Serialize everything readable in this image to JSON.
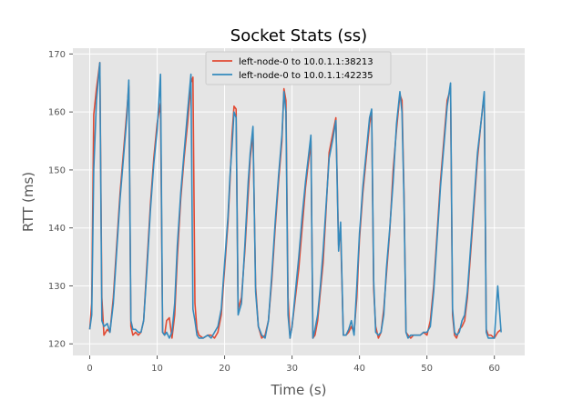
{
  "chart_data": {
    "type": "line",
    "title": "Socket Stats (ss)",
    "xlabel": "Time (s)",
    "ylabel": "RTT (ms)",
    "xlim": [
      -2.5,
      64.5
    ],
    "ylim": [
      118,
      171
    ],
    "xticks": [
      0,
      10,
      20,
      30,
      40,
      50,
      60
    ],
    "yticks": [
      120,
      130,
      140,
      150,
      160,
      170
    ],
    "grid": true,
    "legend_position": "top-center",
    "background_color": "#e5e5e5",
    "series": [
      {
        "name": "left-node-0 to 10.0.1.1:38213",
        "color": "#e24a33",
        "x": [
          0,
          0.3,
          0.6,
          1.0,
          1.5,
          1.8,
          2.1,
          2.6,
          3.0,
          3.5,
          4.0,
          4.5,
          5.0,
          5.5,
          5.8,
          6.1,
          6.4,
          6.8,
          7.2,
          7.6,
          8.0,
          8.5,
          9.0,
          9.5,
          10.0,
          10.5,
          10.8,
          11.1,
          11.4,
          11.8,
          12.2,
          12.6,
          13.0,
          13.5,
          14.0,
          14.5,
          15.0,
          15.3,
          15.6,
          15.9,
          16.2,
          16.8,
          17.5,
          18.0,
          18.5,
          19.0,
          19.5,
          20.0,
          20.5,
          20.8,
          21.1,
          21.4,
          21.7,
          22.0,
          22.5,
          23.0,
          23.5,
          23.8,
          24.2,
          24.6,
          25.0,
          25.5,
          26.0,
          26.5,
          27.0,
          27.5,
          28.0,
          28.5,
          28.8,
          29.1,
          29.4,
          29.7,
          30.0,
          30.5,
          31.0,
          31.5,
          32.0,
          32.5,
          32.8,
          33.1,
          33.4,
          33.8,
          34.2,
          34.6,
          35.0,
          35.5,
          36.0,
          36.5,
          36.9,
          37.2,
          37.6,
          38.0,
          38.4,
          38.8,
          39.2,
          39.6,
          40.0,
          40.5,
          41.0,
          41.5,
          41.8,
          42.1,
          42.4,
          42.8,
          43.2,
          43.6,
          44.0,
          44.5,
          45.0,
          45.5,
          46.0,
          46.3,
          46.6,
          46.9,
          47.2,
          47.6,
          48.0,
          48.5,
          49.0,
          49.5,
          50.0,
          50.5,
          51.0,
          51.5,
          52.0,
          52.5,
          53.0,
          53.5,
          53.8,
          54.1,
          54.4,
          54.8,
          55.2,
          55.6,
          56.0,
          56.5,
          57.0,
          57.5,
          58.0,
          58.5,
          58.8,
          59.1,
          59.5,
          60.0,
          60.5,
          61.0
        ],
        "y": [
          122.5,
          127,
          159.5,
          164,
          168.5,
          128,
          121.5,
          122.5,
          122,
          128,
          137,
          146,
          153,
          160,
          164.5,
          123,
          121.5,
          122,
          121.5,
          122,
          124,
          134,
          144,
          152,
          158,
          161.5,
          122,
          121.5,
          124,
          124.5,
          121,
          125,
          135,
          145,
          152,
          158,
          165,
          166,
          127,
          122.5,
          121.5,
          121,
          121.5,
          121.5,
          121,
          122,
          125,
          133,
          141,
          148,
          156,
          161,
          160.5,
          126,
          128,
          136,
          146,
          152,
          156.5,
          130,
          123,
          121,
          121.5,
          124,
          131,
          140,
          148,
          155,
          164,
          162,
          128,
          121,
          123,
          128,
          133,
          140,
          147,
          152,
          155,
          121,
          121.5,
          124,
          129,
          134,
          142,
          153,
          156,
          159,
          137,
          139.5,
          121.5,
          121.5,
          122,
          123,
          122,
          128,
          138,
          146,
          152,
          158,
          160,
          129.5,
          123,
          121,
          122,
          126,
          132,
          139.5,
          150,
          157,
          163,
          162,
          146,
          122,
          121.5,
          121,
          121.5,
          121.5,
          121.5,
          122,
          121.5,
          124,
          130,
          139,
          148,
          155,
          162,
          164,
          125,
          121.5,
          121,
          122.5,
          123,
          124,
          128,
          136,
          144,
          152,
          158,
          163,
          122.5,
          121.5,
          121.5,
          121,
          122,
          122.5
        ]
      },
      {
        "name": "left-node-0 to 10.0.1.1:42235",
        "color": "#348abd",
        "x": [
          0,
          0.3,
          0.6,
          1.0,
          1.5,
          1.8,
          2.1,
          2.6,
          3.0,
          3.5,
          4.0,
          4.5,
          5.0,
          5.5,
          5.8,
          6.1,
          6.4,
          6.8,
          7.2,
          7.6,
          8.0,
          8.5,
          9.0,
          9.5,
          10.0,
          10.5,
          10.8,
          11.1,
          11.4,
          11.8,
          12.2,
          12.6,
          13.0,
          13.5,
          14.0,
          14.5,
          15.0,
          15.3,
          15.6,
          15.9,
          16.2,
          16.8,
          17.5,
          18.0,
          18.5,
          19.0,
          19.5,
          20.0,
          20.5,
          20.8,
          21.1,
          21.4,
          21.7,
          22.0,
          22.5,
          23.0,
          23.5,
          23.8,
          24.2,
          24.6,
          25.0,
          25.5,
          26.0,
          26.5,
          27.0,
          27.5,
          28.0,
          28.5,
          28.8,
          29.1,
          29.4,
          29.7,
          30.0,
          30.5,
          31.0,
          31.5,
          32.0,
          32.5,
          32.8,
          33.1,
          33.4,
          33.8,
          34.2,
          34.6,
          35.0,
          35.5,
          36.0,
          36.5,
          36.9,
          37.2,
          37.6,
          38.0,
          38.4,
          38.8,
          39.2,
          39.6,
          40.0,
          40.5,
          41.0,
          41.5,
          41.8,
          42.1,
          42.4,
          42.8,
          43.2,
          43.6,
          44.0,
          44.5,
          45.0,
          45.5,
          46.0,
          46.3,
          46.6,
          46.9,
          47.2,
          47.6,
          48.0,
          48.5,
          49.0,
          49.5,
          50.0,
          50.5,
          51.0,
          51.5,
          52.0,
          52.5,
          53.0,
          53.5,
          53.8,
          54.1,
          54.4,
          54.8,
          55.2,
          55.6,
          56.0,
          56.5,
          57.0,
          57.5,
          58.0,
          58.5,
          58.8,
          59.1,
          59.5,
          60.0,
          60.5,
          61.0
        ],
        "y": [
          122.5,
          125,
          150,
          162,
          168.5,
          124,
          123,
          123.5,
          122,
          127,
          136,
          145,
          152,
          159,
          165.5,
          124,
          122.5,
          122.5,
          122,
          122,
          124,
          133,
          143,
          151,
          157,
          166.5,
          122,
          121.5,
          122,
          121,
          122,
          127,
          137,
          146,
          153,
          160,
          166.5,
          126,
          124,
          121.5,
          121,
          121,
          121.5,
          121,
          122,
          123,
          126,
          134,
          142,
          149,
          154,
          160,
          159,
          125,
          127,
          137,
          148,
          153,
          157.5,
          129,
          123,
          121.5,
          121,
          124,
          132,
          141,
          149,
          156,
          163.5,
          160,
          125,
          121,
          123,
          129,
          135,
          142,
          148,
          153,
          156,
          121,
          122.5,
          125,
          130,
          136,
          143,
          152,
          155,
          158.5,
          136,
          141,
          121.5,
          121.5,
          122.5,
          124,
          121.5,
          130,
          139,
          147,
          153,
          159,
          160.5,
          131,
          122,
          121.5,
          122,
          125,
          133,
          140,
          148,
          158,
          163.5,
          160,
          145,
          122,
          121,
          121.5,
          121.5,
          121.5,
          121.5,
          122,
          122,
          123,
          129,
          138,
          147,
          154,
          161,
          165,
          126,
          122,
          121.5,
          122,
          124,
          125,
          129,
          137,
          145,
          153,
          158,
          163.5,
          122,
          121,
          121,
          121,
          130,
          122
        ]
      }
    ]
  }
}
